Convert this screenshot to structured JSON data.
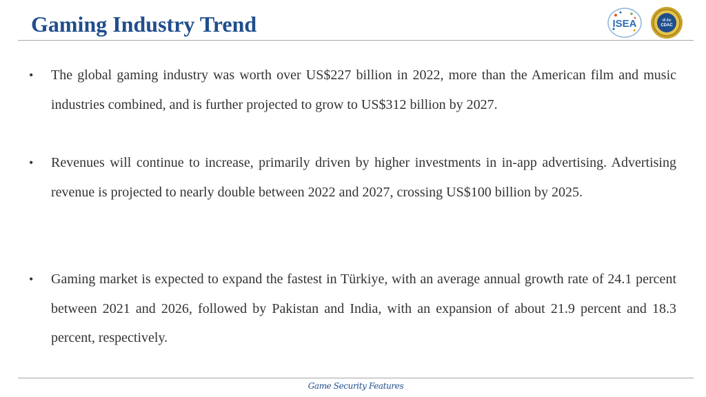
{
  "header": {
    "title": "Gaming Industry Trend",
    "logos": [
      {
        "name": "isea-logo",
        "text": "ISEA",
        "color": "#2d6db5"
      },
      {
        "name": "cdac-logo",
        "text": "CDAC",
        "color": "#c9a227"
      }
    ]
  },
  "content": {
    "bullets": [
      "The global gaming industry was worth over US$227 billion in 2022, more than the American film and music industries combined, and is further projected to grow to US$312 billion by 2027.",
      "Revenues will continue to increase, primarily driven by higher investments in in-app advertising. Advertising revenue is projected to nearly double between 2022 and 2027, crossing US$100 billion by 2025.",
      "Gaming market is expected to expand the fastest in Türkiye, with an average annual growth rate of 24.1 percent between 2021 and 2026, followed by Pakistan and India, with an expansion of about 21.9 percent and 18.3 percent, respectively."
    ]
  },
  "footer": {
    "text": "Game Security Features"
  },
  "colors": {
    "title": "#1f4e8c",
    "body_text": "#333333",
    "rule": "#a6a6a6"
  }
}
